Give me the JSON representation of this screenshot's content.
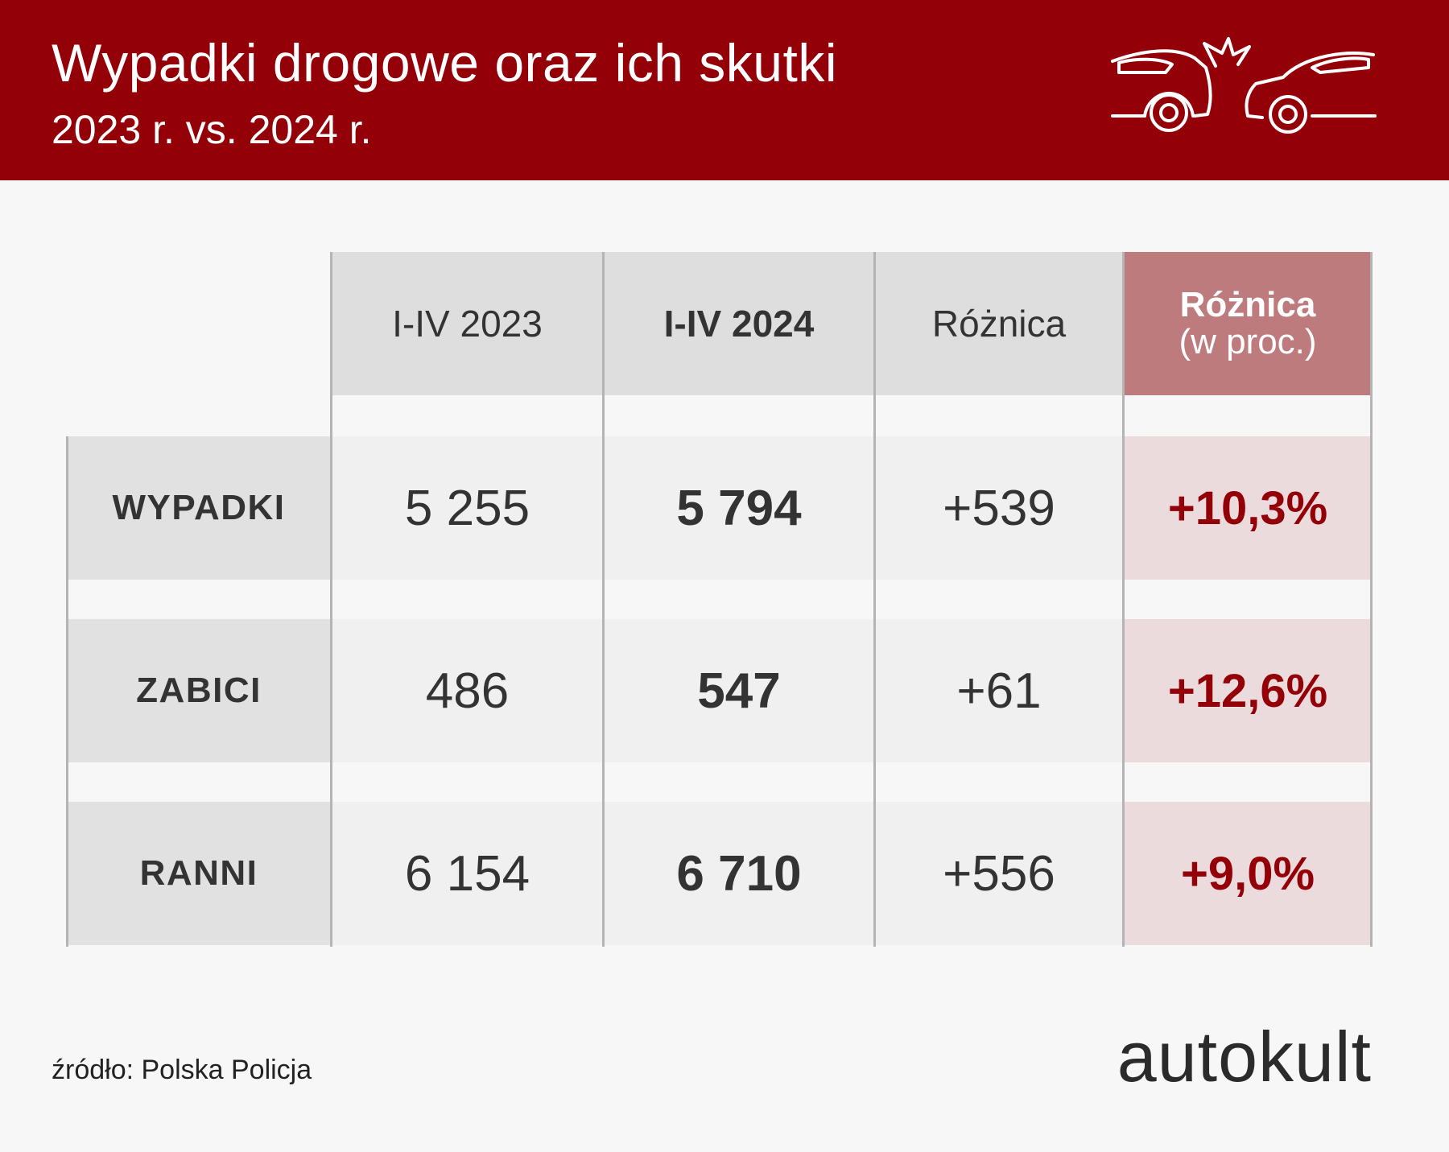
{
  "header": {
    "title": "Wypadki drogowe oraz ich skutki",
    "subtitle": "2023 r. vs. 2024 r."
  },
  "chart_data": {
    "type": "table",
    "columns": [
      "I-IV 2023",
      "I-IV 2024",
      "Różnica",
      "Różnica",
      "(w proc.)"
    ],
    "column_labels": {
      "c2023": "I-IV 2023",
      "c2024": "I-IV 2024",
      "diff": "Różnica",
      "pct_line1": "Różnica",
      "pct_line2": "(w proc.)"
    },
    "rows": [
      {
        "label": "WYPADKI",
        "v2023": "5 255",
        "v2024": "5 794",
        "diff": "+539",
        "pct": "+10,3%"
      },
      {
        "label": "ZABICI",
        "v2023": "486",
        "v2024": "547",
        "diff": "+61",
        "pct": "+12,6%"
      },
      {
        "label": "RANNI",
        "v2023": "6 154",
        "v2024": "6 710",
        "diff": "+556",
        "pct": "+9,0%"
      }
    ],
    "values": {
      "i_iv_2023": [
        5255,
        486,
        6154
      ],
      "i_iv_2024": [
        5794,
        547,
        6710
      ],
      "difference": [
        539,
        61,
        556
      ],
      "difference_percent": [
        10.3,
        12.6,
        9.0
      ]
    }
  },
  "footer": {
    "source": "źródło: Polska Policja",
    "brand": "autokult"
  },
  "icons": {
    "header_icon": "car-crash-icon"
  },
  "colors": {
    "brand_red": "#940007",
    "accent_header": "#be7b7e",
    "accent_cell": "#ebdbdc",
    "background": "#f7f7f7"
  }
}
